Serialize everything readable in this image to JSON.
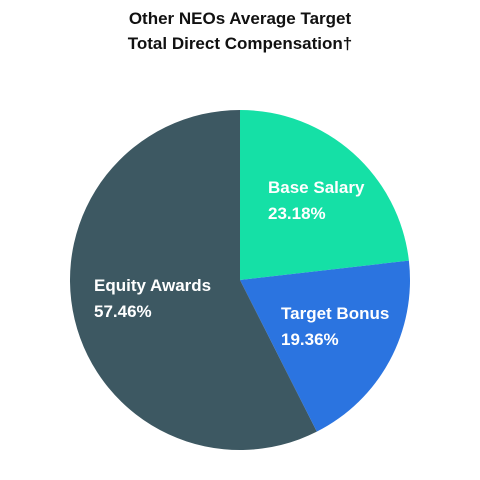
{
  "chart_data": {
    "type": "pie",
    "title_lines": [
      "Other NEOs Average Target",
      "Total Direct Compensation†"
    ],
    "start_angle_deg": 0,
    "direction": "clockwise",
    "slices": [
      {
        "label": "Base Salary",
        "value": 23.18,
        "display": "23.18%",
        "color": "#15e0a6"
      },
      {
        "label": "Target Bonus",
        "value": 19.36,
        "display": "19.36%",
        "color": "#2b74e0"
      },
      {
        "label": "Equity Awards",
        "value": 57.46,
        "display": "57.46%",
        "color": "#3d5862"
      }
    ]
  }
}
